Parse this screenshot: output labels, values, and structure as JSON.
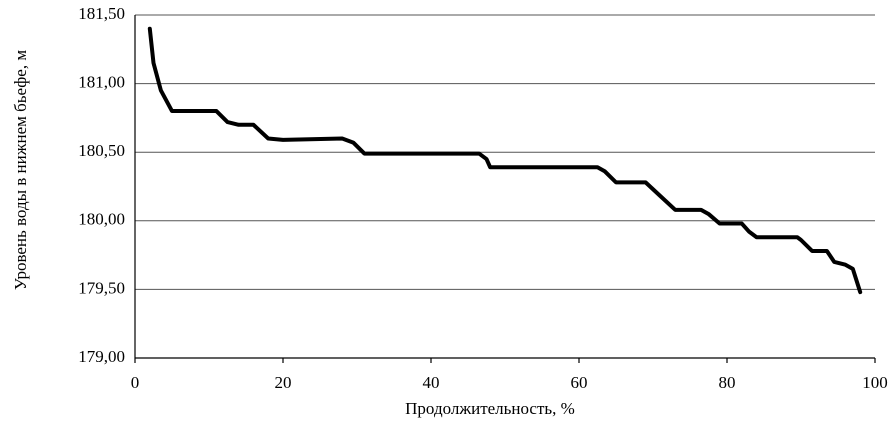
{
  "chart_data": {
    "type": "line",
    "x_label": "Продолжительность, %",
    "y_label": "Уровень воды в нижнем бьефе, м",
    "x": [
      2.0,
      2.5,
      3.5,
      5.0,
      11.0,
      12.5,
      14.0,
      16.0,
      18.0,
      20.0,
      28.0,
      29.5,
      31.0,
      46.5,
      47.5,
      48.0,
      50.0,
      62.5,
      63.5,
      65.0,
      69.0,
      71.0,
      73.0,
      76.5,
      77.5,
      79.0,
      82.0,
      83.0,
      84.0,
      89.5,
      90.0,
      91.5,
      93.5,
      94.5,
      96.0,
      97.0,
      98.0
    ],
    "values": [
      181.4,
      181.15,
      180.95,
      180.8,
      180.8,
      180.72,
      180.7,
      180.7,
      180.6,
      180.59,
      180.6,
      180.57,
      180.49,
      180.49,
      180.45,
      180.39,
      180.39,
      180.39,
      180.36,
      180.28,
      180.28,
      180.18,
      180.08,
      180.08,
      180.05,
      179.98,
      179.98,
      179.92,
      179.88,
      179.88,
      179.86,
      179.78,
      179.78,
      179.7,
      179.68,
      179.65,
      179.48
    ],
    "color": "#000000",
    "xlim": [
      0,
      100
    ],
    "xticks": [
      0,
      20,
      40,
      60,
      80,
      100
    ],
    "ylim": [
      179.0,
      181.5
    ],
    "yticks": [
      {
        "value": 179.0,
        "label": "179,00"
      },
      {
        "value": 179.5,
        "label": "179,50"
      },
      {
        "value": 180.0,
        "label": "180,00"
      },
      {
        "value": 180.5,
        "label": "180,50"
      },
      {
        "value": 181.0,
        "label": "181,00"
      },
      {
        "value": 181.5,
        "label": "181,50"
      }
    ],
    "grid": true
  }
}
